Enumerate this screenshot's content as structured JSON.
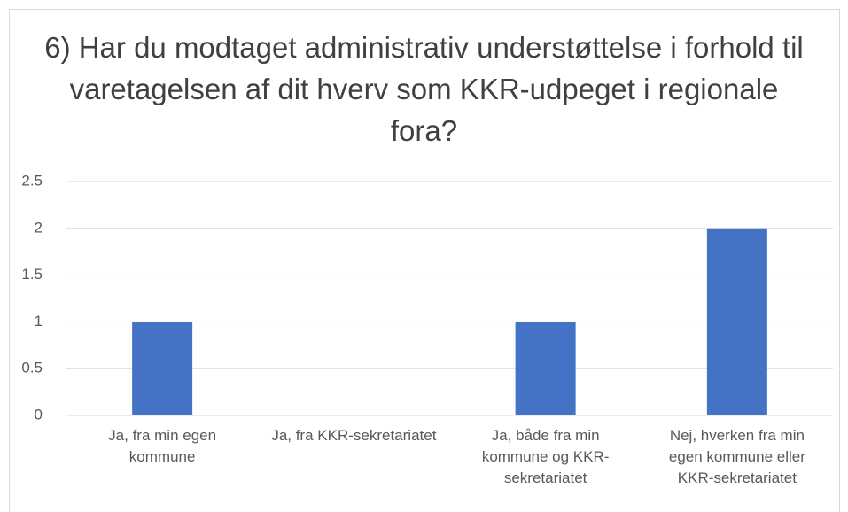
{
  "chart_data": {
    "type": "bar",
    "title": "6) Har du modtaget administrativ understøttelse i forhold til varetagelsen af dit hverv som KKR-udpeget i regionale fora?",
    "categories": [
      "Ja, fra min egen kommune",
      "Ja, fra KKR-sekretariatet",
      "Ja, både fra min kommune og KKR-sekretariatet",
      "Nej, hverken fra min egen kommune eller KKR-sekretariatet"
    ],
    "values": [
      1,
      0,
      1,
      2
    ],
    "color": "#4472c4",
    "ylim": [
      0,
      2.5
    ],
    "yticks": [
      0,
      0.5,
      1,
      1.5,
      2,
      2.5
    ],
    "grid": true
  }
}
